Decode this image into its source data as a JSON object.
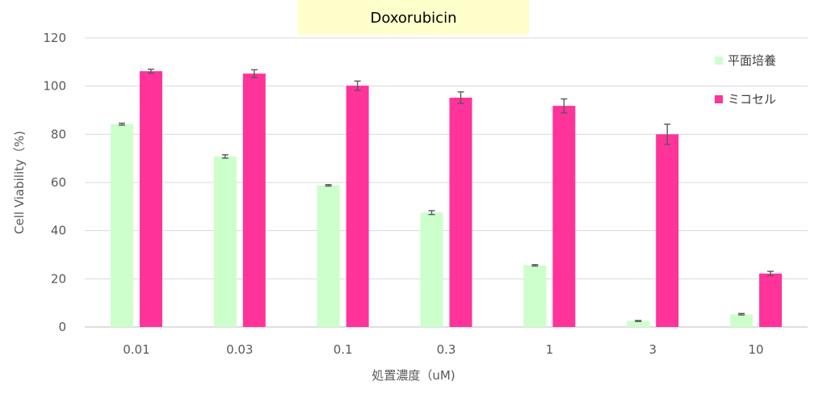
{
  "chart_data": {
    "type": "bar",
    "title": "Doxorubicin",
    "xlabel": "処置濃度（uM)",
    "ylabel": "Cell Viability（%)",
    "categories": [
      "0.01",
      "0.03",
      "0.1",
      "0.3",
      "1",
      "3",
      "10"
    ],
    "ylim": [
      0,
      120
    ],
    "yticks": [
      0,
      20,
      40,
      60,
      80,
      100,
      120
    ],
    "grid": true,
    "legend_position": "top-right",
    "series": [
      {
        "name": "平面培養",
        "color": "#ccffcc",
        "values": [
          84.2,
          70.8,
          58.8,
          47.5,
          25.6,
          2.5,
          5.3
        ],
        "errors": [
          0.4,
          0.7,
          0.3,
          0.8,
          0.3,
          0.2,
          0.3
        ]
      },
      {
        "name": "ミコセル",
        "color": "#ff3399",
        "values": [
          106.2,
          105.2,
          100.2,
          95.2,
          91.8,
          80.0,
          22.2
        ],
        "errors": [
          0.8,
          1.6,
          1.9,
          2.4,
          2.9,
          4.2,
          0.9
        ]
      }
    ],
    "title_background": "#ffffcc",
    "error_bar_color": "#595959",
    "grid_color": "#d9d9d9"
  }
}
